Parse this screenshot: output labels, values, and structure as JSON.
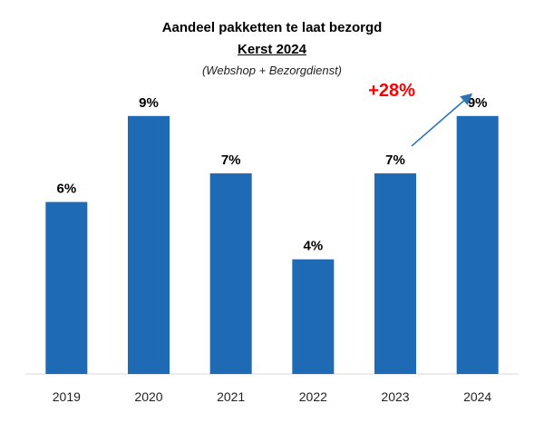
{
  "chart_data": {
    "type": "bar",
    "title": "Aandeel pakketten te laat bezorgd",
    "subtitle": "Kerst 2024",
    "note": "(Webshop + Bezorgdienst)",
    "categories": [
      "2019",
      "2020",
      "2021",
      "2022",
      "2023",
      "2024"
    ],
    "values": [
      6,
      9,
      7,
      4,
      7,
      9
    ],
    "data_labels": [
      "6%",
      "9%",
      "7%",
      "4%",
      "7%",
      "9%"
    ],
    "unit": "%",
    "ylim": [
      0,
      9.5
    ],
    "bar_color": "#1f6ab5",
    "annotation": {
      "text": "+28%",
      "color": "#ff0000",
      "arrow_color": "#2a73b8",
      "from": "2023",
      "to": "2024"
    }
  }
}
